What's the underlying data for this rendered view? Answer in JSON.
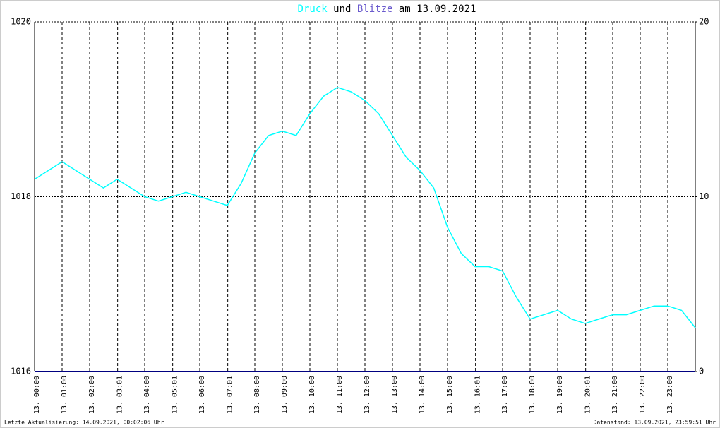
{
  "chart_data": {
    "type": "line",
    "title_parts": [
      "und",
      "am 13.09.2021"
    ],
    "footer_left": "Letzte Aktualisierung: 14.09.2021, 00:02:06 Uhr",
    "footer_right": "Datenstand: 13.09.2021, 23:59:51 Uhr",
    "xlim": [
      0,
      24
    ],
    "xticks": [
      {
        "value": 0,
        "label": "13. 00:00"
      },
      {
        "value": 1,
        "label": "13. 01:00"
      },
      {
        "value": 2,
        "label": "13. 02:00"
      },
      {
        "value": 3.017,
        "label": "13. 03:01"
      },
      {
        "value": 4,
        "label": "13. 04:00"
      },
      {
        "value": 5.017,
        "label": "13. 05:01"
      },
      {
        "value": 6,
        "label": "13. 06:00"
      },
      {
        "value": 7.017,
        "label": "13. 07:01"
      },
      {
        "value": 8,
        "label": "13. 08:00"
      },
      {
        "value": 9,
        "label": "13. 09:00"
      },
      {
        "value": 10,
        "label": "13. 10:00"
      },
      {
        "value": 11,
        "label": "13. 11:00"
      },
      {
        "value": 12,
        "label": "13. 12:00"
      },
      {
        "value": 13,
        "label": "13. 13:00"
      },
      {
        "value": 14,
        "label": "13. 14:00"
      },
      {
        "value": 15,
        "label": "13. 15:00"
      },
      {
        "value": 16.017,
        "label": "13. 16:01"
      },
      {
        "value": 17,
        "label": "13. 17:00"
      },
      {
        "value": 18,
        "label": "13. 18:00"
      },
      {
        "value": 19,
        "label": "13. 19:00"
      },
      {
        "value": 20.017,
        "label": "13. 20:01"
      },
      {
        "value": 21,
        "label": "13. 21:00"
      },
      {
        "value": 22,
        "label": "13. 22:00"
      },
      {
        "value": 23,
        "label": "13. 23:00"
      }
    ],
    "ylim": [
      1016,
      1020
    ],
    "yticks": [
      1016,
      1018,
      1020
    ],
    "y2lim": [
      0,
      20
    ],
    "y2ticks": [
      0,
      10,
      20
    ],
    "series": [
      {
        "name": "Druck",
        "color": "#00ffff",
        "x": [
          0,
          0.5,
          1,
          1.5,
          2,
          2.5,
          3,
          3.5,
          4,
          4.5,
          5,
          5.5,
          6,
          6.5,
          7,
          7.5,
          8,
          8.5,
          9,
          9.5,
          10,
          10.5,
          11,
          11.5,
          12,
          12.5,
          13,
          13.5,
          14,
          14.5,
          15,
          15.5,
          16,
          16.5,
          17,
          17.5,
          18,
          18.5,
          19,
          19.5,
          20,
          20.5,
          21,
          21.5,
          22,
          22.5,
          23,
          23.5,
          24
        ],
        "values": [
          1018.2,
          1018.3,
          1018.4,
          1018.3,
          1018.2,
          1018.1,
          1018.2,
          1018.1,
          1018.0,
          1017.95,
          1018.0,
          1018.05,
          1018.0,
          1017.95,
          1017.9,
          1018.15,
          1018.5,
          1018.7,
          1018.75,
          1018.7,
          1018.95,
          1019.15,
          1019.25,
          1019.2,
          1019.1,
          1018.95,
          1018.7,
          1018.45,
          1018.3,
          1018.1,
          1017.65,
          1017.35,
          1017.2,
          1017.2,
          1017.15,
          1016.85,
          1016.6,
          1016.65,
          1016.7,
          1016.6,
          1016.55,
          1016.6,
          1016.65,
          1016.65,
          1016.7,
          1016.75,
          1016.75,
          1016.7,
          1016.5
        ]
      },
      {
        "name": "Blitze",
        "color": "#6a5acd",
        "axis": "y2",
        "line_color": "#000080",
        "x": [
          0,
          24
        ],
        "values": [
          0,
          0
        ]
      }
    ]
  }
}
